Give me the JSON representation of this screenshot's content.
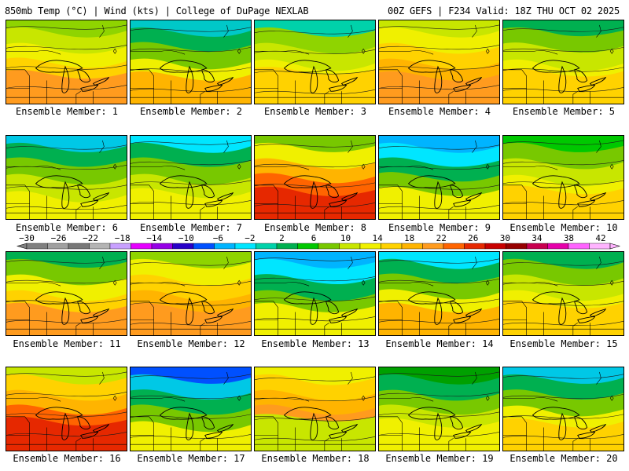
{
  "header": {
    "left": "850mb Temp (°C) | Wind (kts) | College of DuPage NEXLAB",
    "right": "00Z GEFS | F234 Valid: 18Z THU OCT 02 2025"
  },
  "members": [
    {
      "label": "Ensemble Member: 1",
      "palette": [
        "#8fd400",
        "#c8e600",
        "#f0f000",
        "#ffd200",
        "#ff9b1e"
      ],
      "weights": [
        0.3,
        0.7,
        0.8,
        0.7,
        0.5
      ]
    },
    {
      "label": "Ensemble Member: 2",
      "palette": [
        "#00c8c8",
        "#00b050",
        "#78c800",
        "#f0f000",
        "#ffb400"
      ],
      "weights": [
        0.4,
        0.6,
        0.6,
        0.8,
        0.6
      ]
    },
    {
      "label": "Ensemble Member: 3",
      "palette": [
        "#00d2aa",
        "#8fd400",
        "#c8e600",
        "#f0f000",
        "#ffd200"
      ],
      "weights": [
        0.4,
        0.6,
        0.8,
        0.9,
        0.3
      ]
    },
    {
      "label": "Ensemble Member: 4",
      "palette": [
        "#c8e600",
        "#f0f000",
        "#ffd200",
        "#ffb400",
        "#ff9b1e"
      ],
      "weights": [
        0.3,
        0.7,
        0.8,
        0.8,
        0.6
      ]
    },
    {
      "label": "Ensemble Member: 5",
      "palette": [
        "#00b050",
        "#78c800",
        "#c8e600",
        "#f0f000",
        "#ffd200"
      ],
      "weights": [
        0.6,
        0.5,
        0.7,
        0.9,
        0.4
      ]
    },
    {
      "label": "Ensemble Member: 6",
      "palette": [
        "#00c8e6",
        "#00b050",
        "#78c800",
        "#c8e600",
        "#f0f000"
      ],
      "weights": [
        0.4,
        0.6,
        0.6,
        0.8,
        0.9
      ]
    },
    {
      "label": "Ensemble Member: 7",
      "palette": [
        "#00e6ff",
        "#00b050",
        "#78c800",
        "#c8e600",
        "#f0f000"
      ],
      "weights": [
        0.5,
        0.7,
        0.6,
        0.8,
        0.7
      ]
    },
    {
      "label": "Ensemble Member: 8",
      "palette": [
        "#78c800",
        "#f0f000",
        "#ffb400",
        "#ff6400",
        "#e62800"
      ],
      "weights": [
        0.3,
        0.6,
        0.8,
        0.7,
        0.6
      ]
    },
    {
      "label": "Ensemble Member: 9",
      "palette": [
        "#00b4ff",
        "#00e6ff",
        "#00b050",
        "#78c800",
        "#f0f000"
      ],
      "weights": [
        0.5,
        0.7,
        0.6,
        0.6,
        0.6
      ]
    },
    {
      "label": "Ensemble Member: 10",
      "palette": [
        "#00c800",
        "#78c800",
        "#c8e600",
        "#f0f000",
        "#ffd200"
      ],
      "weights": [
        0.3,
        0.6,
        0.8,
        0.9,
        0.5
      ]
    },
    {
      "label": "Ensemble Member: 11",
      "palette": [
        "#00b050",
        "#78c800",
        "#f0f000",
        "#ffd200",
        "#ff9b1e"
      ],
      "weights": [
        0.4,
        0.5,
        0.8,
        0.8,
        0.6
      ]
    },
    {
      "label": "Ensemble Member: 12",
      "palette": [
        "#8fd400",
        "#f0f000",
        "#ffd200",
        "#ffb400",
        "#ff9b1e"
      ],
      "weights": [
        0.3,
        0.6,
        0.8,
        0.8,
        0.6
      ]
    },
    {
      "label": "Ensemble Member: 13",
      "palette": [
        "#00b4ff",
        "#00e6ff",
        "#00b050",
        "#78c800",
        "#f0f000"
      ],
      "weights": [
        0.5,
        0.6,
        0.7,
        0.8,
        0.6
      ]
    },
    {
      "label": "Ensemble Member: 14",
      "palette": [
        "#00e6ff",
        "#00b050",
        "#78c800",
        "#f0f000",
        "#ffb400"
      ],
      "weights": [
        0.5,
        0.7,
        0.6,
        0.7,
        0.6
      ]
    },
    {
      "label": "Ensemble Member: 15",
      "palette": [
        "#00b050",
        "#78c800",
        "#c8e600",
        "#f0f000",
        "#ffd200"
      ],
      "weights": [
        0.4,
        0.7,
        0.8,
        0.8,
        0.4
      ]
    },
    {
      "label": "Ensemble Member: 16",
      "palette": [
        "#c8e600",
        "#ffd200",
        "#ffb400",
        "#ff6400",
        "#e62800"
      ],
      "weights": [
        0.3,
        0.7,
        0.8,
        0.7,
        0.5
      ]
    },
    {
      "label": "Ensemble Member: 17",
      "palette": [
        "#0050ff",
        "#00c8e6",
        "#00b050",
        "#78c800",
        "#f0f000"
      ],
      "weights": [
        0.5,
        0.6,
        0.7,
        0.7,
        0.8
      ]
    },
    {
      "label": "Ensemble Member: 18",
      "palette": [
        "#f0f000",
        "#ffd200",
        "#ffb400",
        "#ff9b1e",
        "#c8e600"
      ],
      "weights": [
        0.5,
        0.8,
        0.8,
        0.7,
        0.3
      ]
    },
    {
      "label": "Ensemble Member: 19",
      "palette": [
        "#00a000",
        "#00b050",
        "#78c800",
        "#c8e600",
        "#f0f000"
      ],
      "weights": [
        0.5,
        0.7,
        0.8,
        0.7,
        0.6
      ]
    },
    {
      "label": "Ensemble Member: 20",
      "palette": [
        "#00c8e6",
        "#00b050",
        "#78c800",
        "#f0f000",
        "#ffd200"
      ],
      "weights": [
        0.4,
        0.6,
        0.7,
        0.8,
        0.6
      ]
    }
  ],
  "colorbar": {
    "ticks": [
      "−30",
      "−26",
      "−22",
      "−18",
      "−14",
      "−10",
      "−6",
      "−2",
      "2",
      "6",
      "10",
      "14",
      "18",
      "22",
      "26",
      "30",
      "34",
      "38",
      "42"
    ],
    "colors": [
      "#808080",
      "#a0a0a0",
      "#787878",
      "#b4b4b4",
      "#c8a0ff",
      "#e600ff",
      "#9600e6",
      "#2800c8",
      "#0050ff",
      "#00b4ff",
      "#00e6ff",
      "#00d2aa",
      "#00b050",
      "#00c800",
      "#78c800",
      "#c8e600",
      "#f0f000",
      "#ffd200",
      "#ffb400",
      "#ff9b1e",
      "#ff6400",
      "#e62800",
      "#c80000",
      "#960000",
      "#c80050",
      "#e600aa",
      "#ff64ff",
      "#ffb4ff"
    ]
  }
}
